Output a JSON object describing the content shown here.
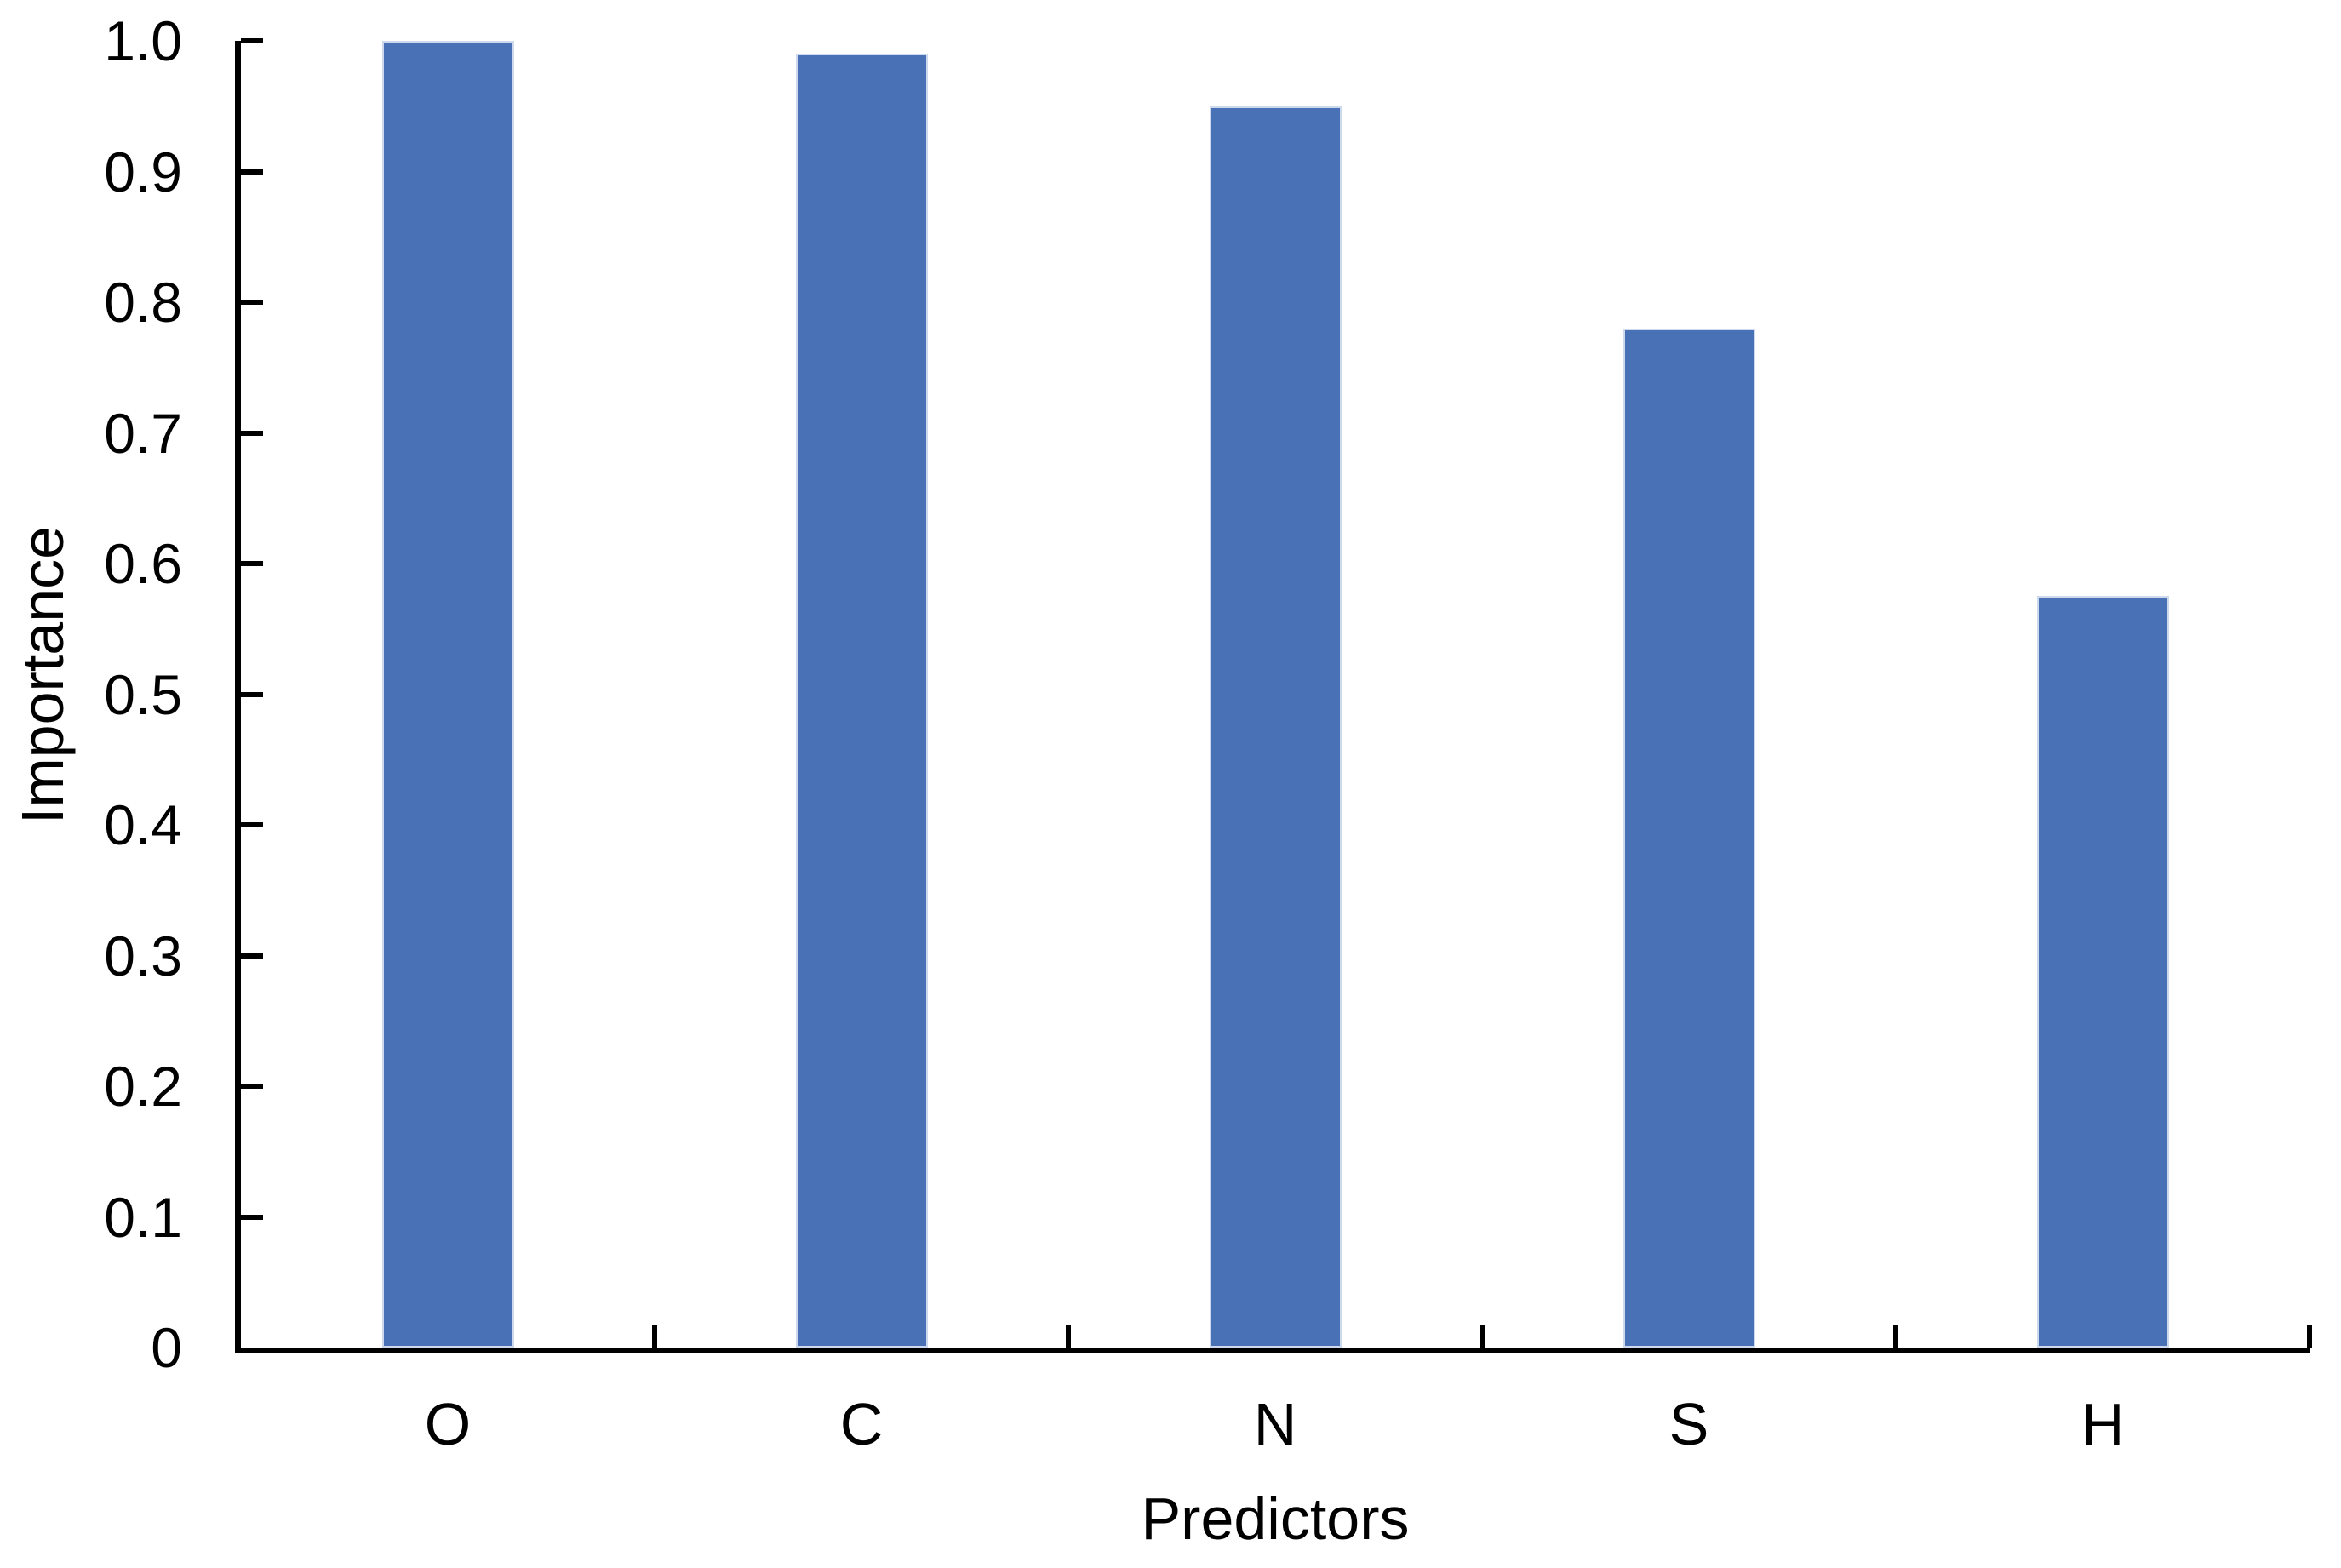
{
  "chart_data": {
    "type": "bar",
    "title": "",
    "categories": [
      "O",
      "C",
      "N",
      "S",
      "H"
    ],
    "values": [
      1.0,
      0.99,
      0.95,
      0.78,
      0.575
    ],
    "xlabel": "Predictors",
    "ylabel": "Importance",
    "ylim": [
      0,
      1.0
    ],
    "yticks": [
      {
        "value": 1.0,
        "label": "1.0"
      },
      {
        "value": 0.9,
        "label": "0.9"
      },
      {
        "value": 0.8,
        "label": "0.8"
      },
      {
        "value": 0.7,
        "label": "0.7"
      },
      {
        "value": 0.6,
        "label": "0.6"
      },
      {
        "value": 0.5,
        "label": "0.5"
      },
      {
        "value": 0.4,
        "label": "0.4"
      },
      {
        "value": 0.3,
        "label": "0.3"
      },
      {
        "value": 0.2,
        "label": "0.2"
      },
      {
        "value": 0.1,
        "label": "0.1"
      },
      {
        "value": 0.0,
        "label": "0"
      }
    ],
    "grid": false,
    "legend": null,
    "tick_style": "inside",
    "colors": {
      "bar_fill": "#4971b6",
      "bar_border": "#cfd9ed",
      "axis": "#000000",
      "text": "#000000",
      "background": "#ffffff"
    }
  }
}
